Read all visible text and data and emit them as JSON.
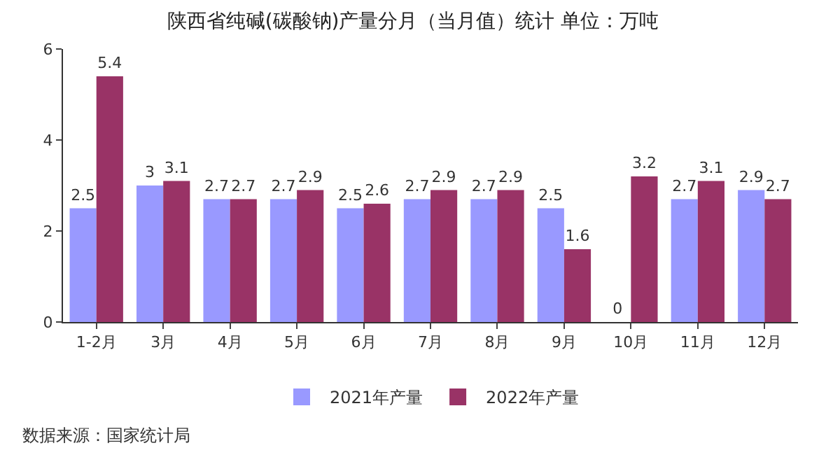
{
  "chart_data": {
    "type": "bar",
    "title": "陕西省纯碱(碳酸钠)产量分月（当月值）统计 单位：万吨",
    "categories": [
      "1-2月",
      "3月",
      "4月",
      "5月",
      "6月",
      "7月",
      "8月",
      "9月",
      "10月",
      "11月",
      "12月"
    ],
    "series": [
      {
        "name": "2021年产量",
        "color": "#9999ff",
        "values": [
          2.5,
          3,
          2.7,
          2.7,
          2.5,
          2.7,
          2.7,
          2.5,
          0,
          2.7,
          2.9
        ]
      },
      {
        "name": "2022年产量",
        "color": "#993366",
        "values": [
          5.4,
          3.1,
          2.7,
          2.9,
          2.6,
          2.9,
          2.9,
          1.6,
          3.2,
          3.1,
          2.7
        ]
      }
    ],
    "ylim": [
      0,
      6
    ],
    "yticks": [
      0,
      2,
      4,
      6
    ],
    "grid": false,
    "legend": "bottom",
    "data_labels": true,
    "annotations": [
      "数据来源：国家统计局"
    ]
  }
}
